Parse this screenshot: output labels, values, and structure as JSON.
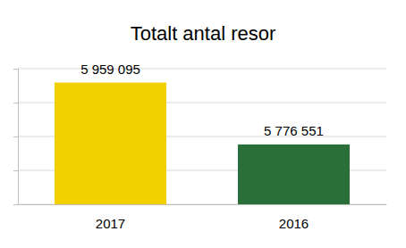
{
  "chart_data": {
    "type": "bar",
    "title": "Totalt antal resor",
    "categories": [
      "2017",
      "2016"
    ],
    "values": [
      5959095,
      5776551
    ],
    "value_labels": [
      "5 959 095",
      "5 776 551"
    ],
    "colors": [
      "#f2d000",
      "#2a6e3a"
    ],
    "ylim": [
      5600000,
      6000000
    ],
    "yticks": [
      5600000,
      5700000,
      5800000,
      5900000,
      6000000
    ],
    "grid": true,
    "data_labels": true,
    "tick_labels": "x"
  }
}
